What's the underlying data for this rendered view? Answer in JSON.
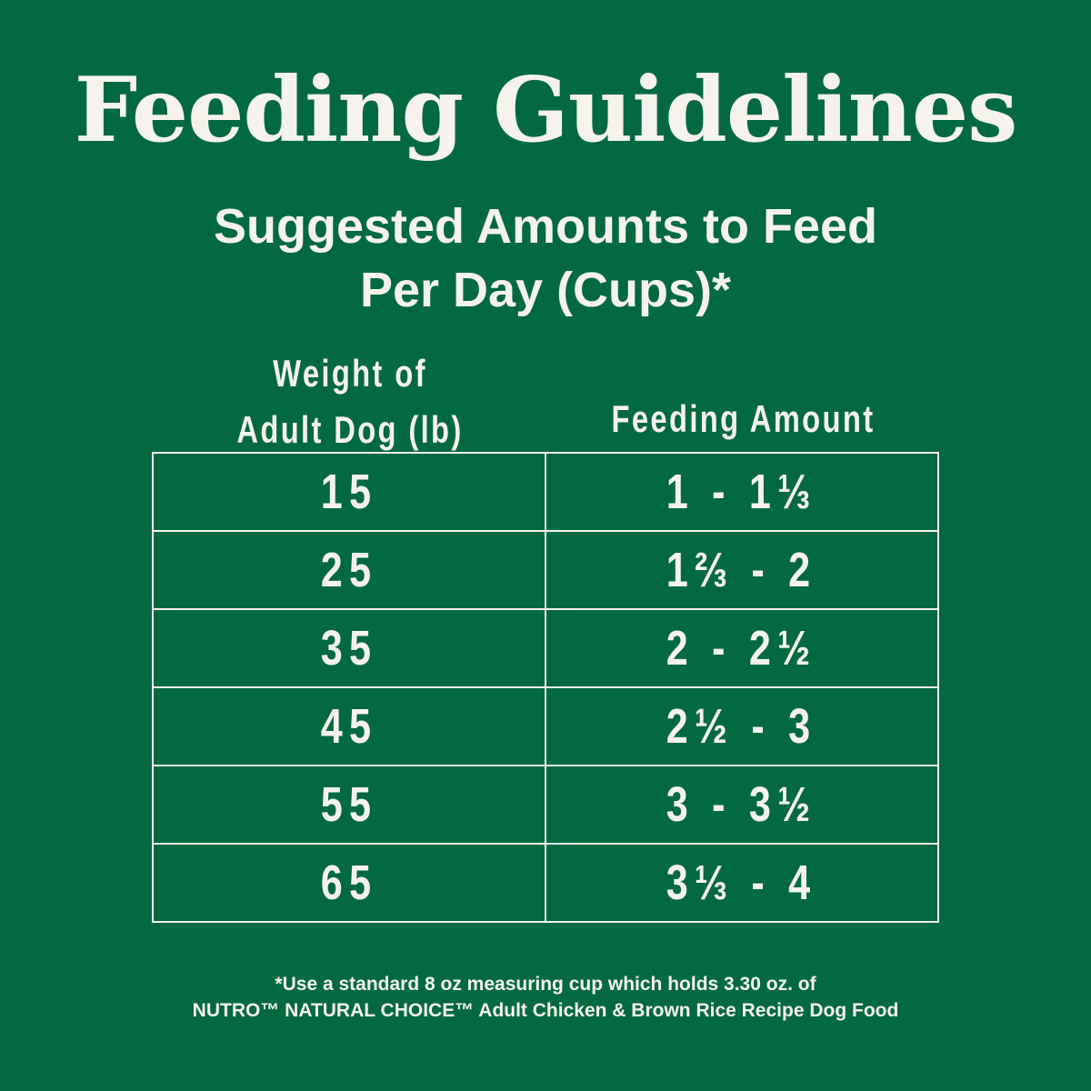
{
  "title": "Feeding Guidelines",
  "subtitle": {
    "line1": "Suggested Amounts to Feed",
    "line2": "Per Day (Cups)*"
  },
  "table": {
    "headers": {
      "weight_line1": "Weight of",
      "weight_line2": "Adult Dog (lb)",
      "amount": "Feeding Amount"
    },
    "rows": [
      {
        "weight": "15",
        "amount": "1 - 1⅓"
      },
      {
        "weight": "25",
        "amount": "1⅔ - 2"
      },
      {
        "weight": "35",
        "amount": "2 - 2½"
      },
      {
        "weight": "45",
        "amount": "2½ - 3"
      },
      {
        "weight": "55",
        "amount": "3 - 3½"
      },
      {
        "weight": "65",
        "amount": "3⅓ - 4"
      }
    ]
  },
  "footnote": {
    "line1": "*Use a standard 8 oz measuring cup which holds 3.30 oz. of",
    "line2": "NUTRO™ NATURAL CHOICE™ Adult Chicken & Brown Rice Recipe Dog Food"
  },
  "colors": {
    "background": "#026940",
    "text": "#f5f3ec"
  }
}
